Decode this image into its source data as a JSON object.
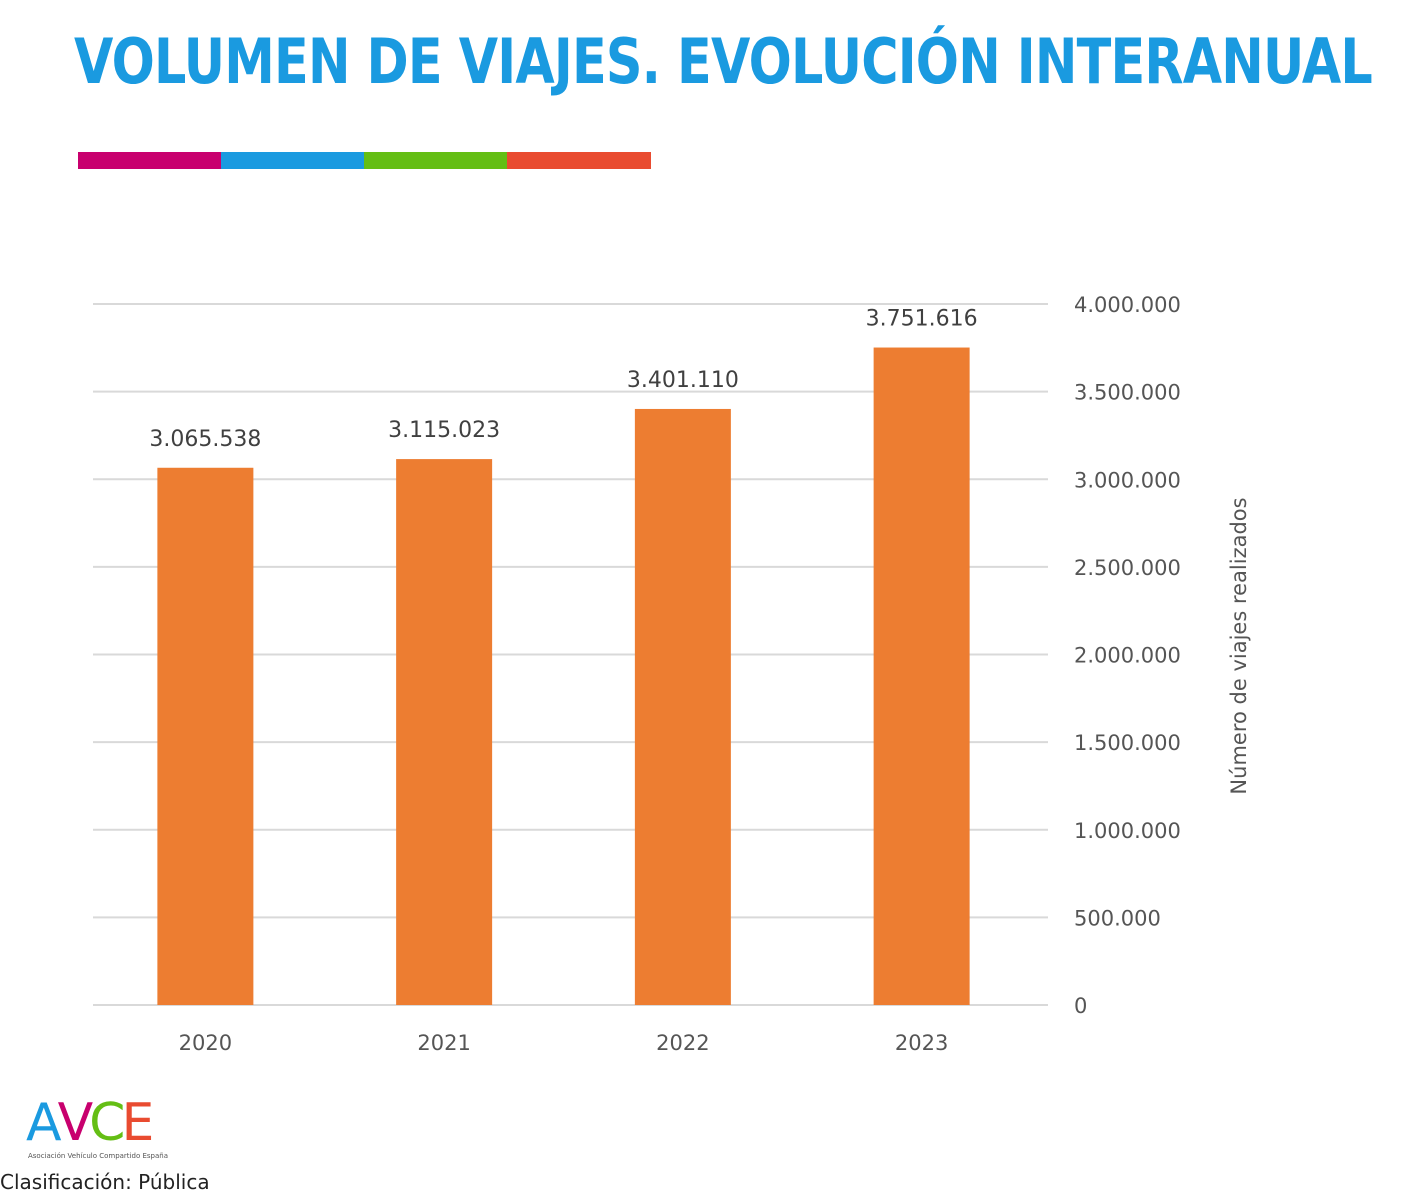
{
  "title": "VOLUMEN DE VIAJES. EVOLUCIÓN INTERANUAL",
  "stripe_colors": [
    "#c8006e",
    "#1a9ae0",
    "#64be14",
    "#e94b30"
  ],
  "footer": {
    "logo_letters": [
      {
        "char": "A",
        "color": "#1a9ae0"
      },
      {
        "char": "V",
        "color": "#c8006e"
      },
      {
        "char": "C",
        "color": "#64be14"
      },
      {
        "char": "E",
        "color": "#e94b30"
      }
    ],
    "logo_subtitle": "Asociación Vehículo Compartido España",
    "classification": "Clasificación: Pública"
  },
  "chart_data": {
    "type": "bar",
    "title": "VOLUMEN DE VIAJES. EVOLUCIÓN INTERANUAL",
    "categories": [
      "2020",
      "2021",
      "2022",
      "2023"
    ],
    "values": [
      3065538,
      3115023,
      3401110,
      3751616
    ],
    "data_labels": [
      "3.065.538",
      "3.115.023",
      "3.401.110",
      "3.751.616"
    ],
    "xlabel": "",
    "ylabel": "Número de viajes realizados",
    "ylim": [
      0,
      4000000
    ],
    "yticks": [
      0,
      500000,
      1000000,
      1500000,
      2000000,
      2500000,
      3000000,
      3500000,
      4000000
    ],
    "ytick_labels": [
      "0",
      "500.000",
      "1.000.000",
      "1.500.000",
      "2.000.000",
      "2.500.000",
      "3.000.000",
      "3.500.000",
      "4.000.000"
    ],
    "y_axis_side": "right",
    "grid": true,
    "bar_color": "#ed7d31",
    "legend": "none"
  }
}
